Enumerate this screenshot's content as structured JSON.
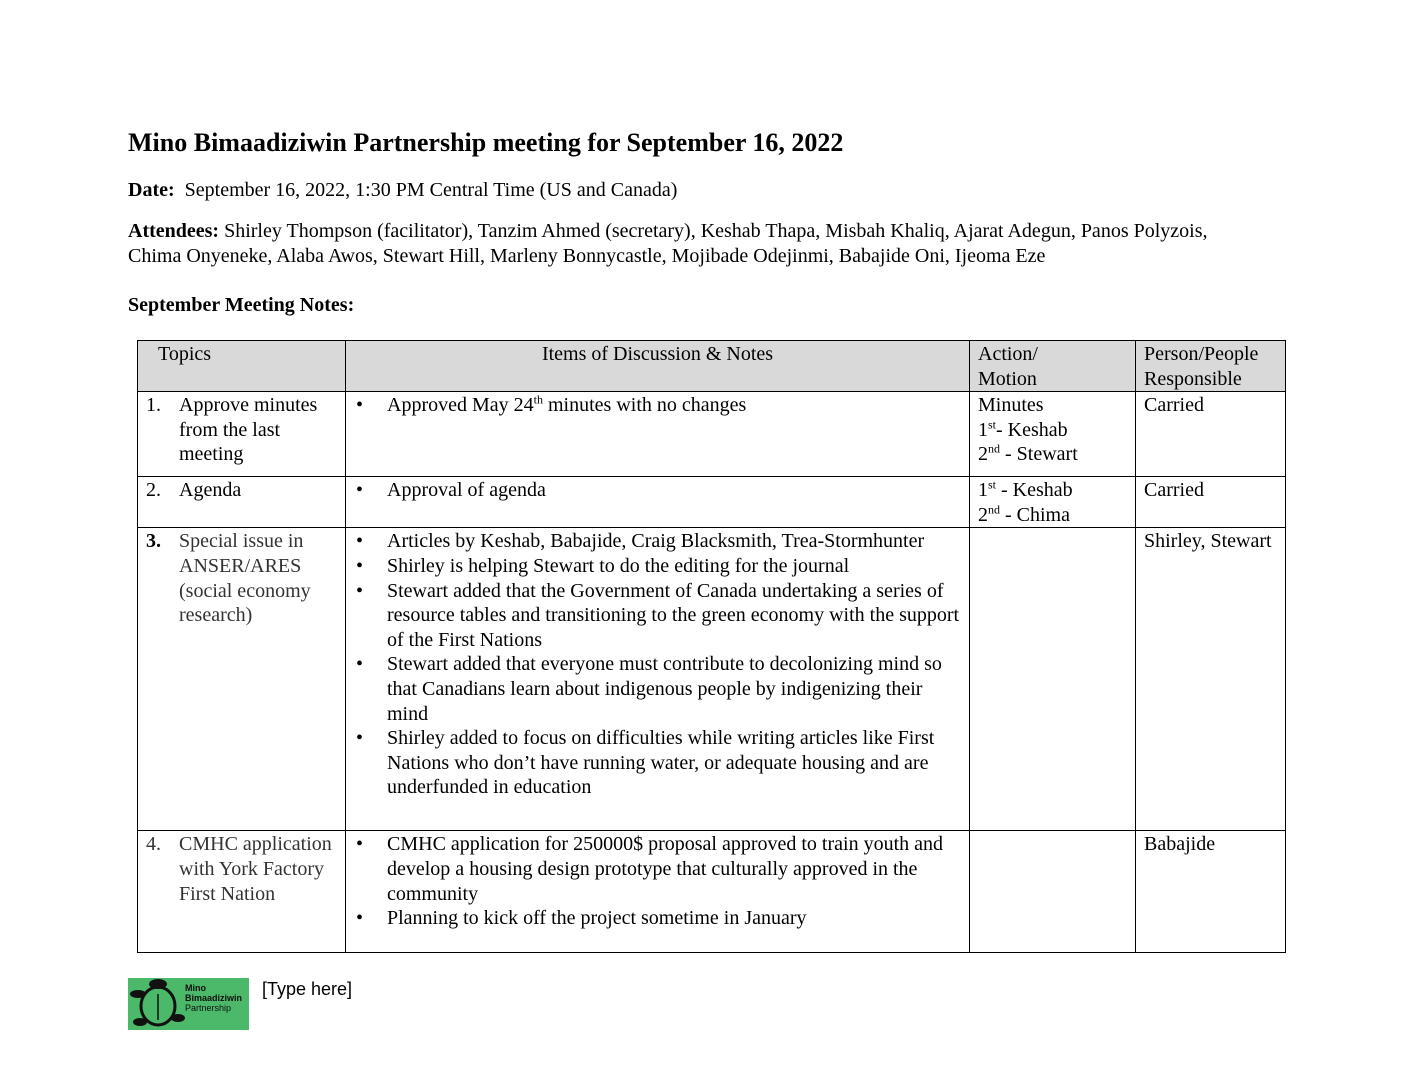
{
  "title": "Mino Bimaadiziwin Partnership meeting for September 16, 2022",
  "date": {
    "label": "Date:",
    "value": "September 16, 2022, 1:30 PM Central Time (US and Canada)"
  },
  "attendees": {
    "label": "Attendees:",
    "line1": "Shirley Thompson (facilitator), Tanzim Ahmed (secretary), Keshab Thapa, Misbah Khaliq, Ajarat Adegun, Panos Polyzois,",
    "line2": "Chima Onyeneke, Alaba Awos, Stewart Hill, Marleny Bonnycastle, Mojibade Odejinmi, Babajide Oni, Ijeoma Eze"
  },
  "notes_heading": "September Meeting Notes:",
  "table": {
    "headers": {
      "topics": "Topics",
      "items": "Items of Discussion & Notes",
      "action1": "Action/",
      "action2": "Motion",
      "person1": "Person/People",
      "person2": "Responsible"
    },
    "rows": [
      {
        "num": "1.",
        "topic": "Approve minutes from the last meeting",
        "items": [
          {
            "pre": "Approved May 24",
            "sup": "th",
            "post": " minutes with no changes"
          }
        ],
        "action": [
          {
            "pre": "Minutes",
            "sup": "",
            "post": ""
          },
          {
            "pre": "1",
            "sup": "st",
            "post": "- Keshab"
          },
          {
            "pre": "2",
            "sup": "nd",
            "post": " - Stewart"
          }
        ],
        "person": "Carried"
      },
      {
        "num": "2.",
        "topic": "Agenda",
        "items": [
          {
            "pre": "Approval of agenda",
            "sup": "",
            "post": ""
          }
        ],
        "action": [
          {
            "pre": "1",
            "sup": "st",
            "post": " - Keshab"
          },
          {
            "pre": "2",
            "sup": "nd",
            "post": " - Chima"
          }
        ],
        "person": "Carried"
      },
      {
        "num": "3.",
        "topic": "Special issue in ANSER/ARES (social economy research)",
        "items": [
          {
            "pre": "Articles by Keshab, Babajide, Craig Blacksmith, Trea-Stormhunter",
            "sup": "",
            "post": ""
          },
          {
            "pre": "Shirley is helping Stewart to do the editing for the journal",
            "sup": "",
            "post": ""
          },
          {
            "pre": "Stewart added that the Government of Canada undertaking a series of resource tables and transitioning to the green economy with the support of the First Nations",
            "sup": "",
            "post": ""
          },
          {
            "pre": "Stewart added that everyone must contribute to decolonizing mind so that Canadians learn about indigenous people by indigenizing their mind",
            "sup": "",
            "post": ""
          },
          {
            "pre": "Shirley added to focus on difficulties while writing articles like First Nations who don’t have running water, or adequate housing and are underfunded in education",
            "sup": "",
            "post": ""
          }
        ],
        "action": [],
        "person": "Shirley, Stewart"
      },
      {
        "num": "4.",
        "topic": "CMHC application with York Factory First Nation",
        "items": [
          {
            "pre": "CMHC application for 250000$ proposal approved to train youth and develop a housing design prototype that culturally approved in the community",
            "sup": "",
            "post": ""
          },
          {
            "pre": "Planning to kick off the project sometime in January",
            "sup": "",
            "post": ""
          }
        ],
        "action": [],
        "person": "Babajide"
      }
    ]
  },
  "footer": {
    "logo_line1": "Mino",
    "logo_line2": "Bimaadiziwin",
    "logo_line3": "Partnership",
    "placeholder": "[Type here]",
    "logo_color": "#4cb86a"
  }
}
